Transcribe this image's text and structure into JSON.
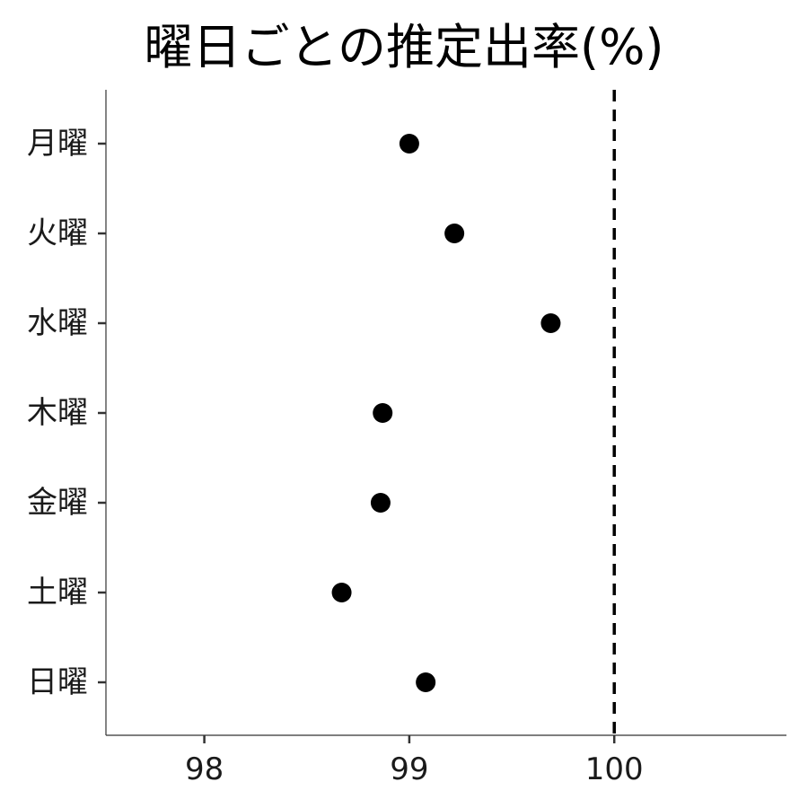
{
  "chart_data": {
    "type": "scatter",
    "title": "曜日ごとの推定出率(%)",
    "xlabel": "",
    "ylabel": "",
    "categories": [
      "月曜",
      "火曜",
      "水曜",
      "木曜",
      "金曜",
      "土曜",
      "日曜"
    ],
    "values": [
      99.0,
      99.22,
      99.69,
      98.87,
      98.86,
      98.67,
      99.08
    ],
    "xlim": [
      97.52,
      100.84
    ],
    "x_ticks": [
      98,
      99,
      100
    ],
    "x_tick_labels": [
      "98",
      "99",
      "100"
    ],
    "reference_line": {
      "x": 100,
      "style": "dashed",
      "color": "#000000"
    },
    "point_color": "#000000",
    "grid": false,
    "legend": "none"
  }
}
